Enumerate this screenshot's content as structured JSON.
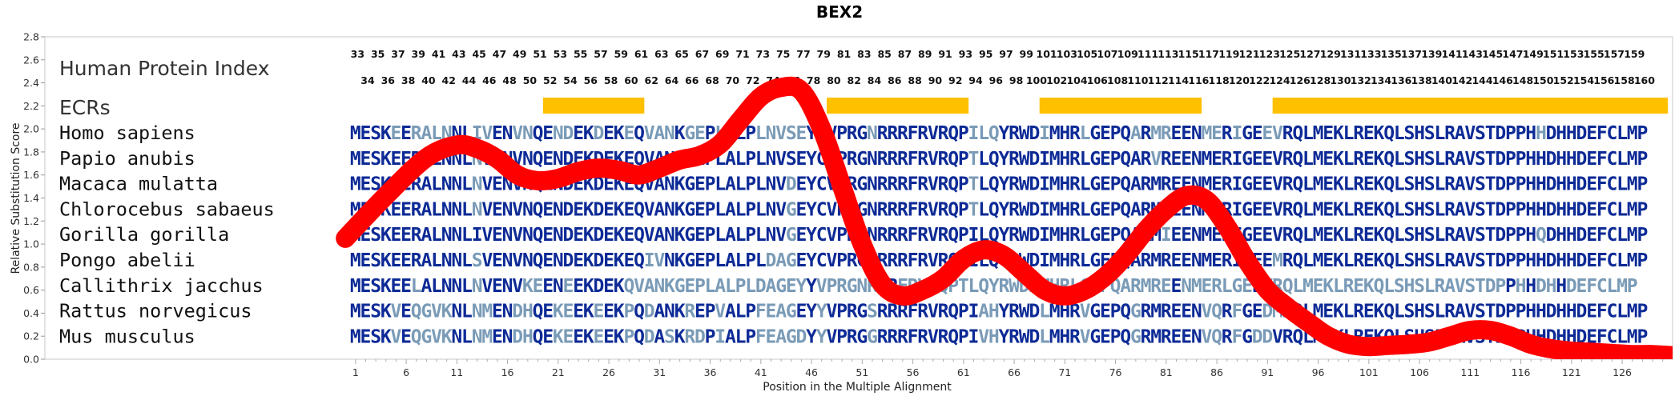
{
  "chart_data": {
    "type": "line",
    "title": "BEX2",
    "xlabel": "Position in the Multiple Alignment",
    "ylabel": "Relative Substitution Score",
    "xlim": [
      1,
      130
    ],
    "ylim": [
      0.0,
      2.8
    ],
    "y_ticks": [
      "0.0",
      "0.2",
      "0.4",
      "0.6",
      "0.8",
      "1.0",
      "1.2",
      "1.4",
      "1.6",
      "1.8",
      "2.0",
      "2.2",
      "2.4",
      "2.6",
      "2.8"
    ],
    "x_ticks": [
      "1",
      "6",
      "11",
      "16",
      "21",
      "26",
      "31",
      "36",
      "41",
      "46",
      "51",
      "56",
      "61",
      "66",
      "71",
      "76",
      "81",
      "86",
      "91",
      "96",
      "101",
      "106",
      "111",
      "116",
      "121",
      "126"
    ],
    "grid": false,
    "series": [
      {
        "color": "#ff0000",
        "x": [
          0,
          4,
          8,
          11,
          13,
          15,
          17,
          19,
          21,
          23,
          25,
          27,
          29,
          31,
          33,
          35,
          37,
          39,
          41,
          43,
          45,
          47,
          49,
          51,
          53,
          55,
          57,
          59,
          61,
          63,
          65,
          67,
          69,
          71,
          73,
          75,
          77,
          79,
          81,
          83,
          85,
          87,
          89,
          91,
          93,
          95,
          97,
          99,
          101,
          103,
          105,
          107,
          109,
          111,
          113,
          115,
          117,
          119,
          121,
          123,
          125,
          127,
          129,
          131
        ],
        "y": [
          1.05,
          1.42,
          1.75,
          1.86,
          1.83,
          1.74,
          1.6,
          1.55,
          1.57,
          1.63,
          1.66,
          1.64,
          1.6,
          1.66,
          1.73,
          1.77,
          1.87,
          2.08,
          2.28,
          2.36,
          2.33,
          2.0,
          1.5,
          1.0,
          0.65,
          0.55,
          0.6,
          0.7,
          0.87,
          0.95,
          0.9,
          0.75,
          0.6,
          0.55,
          0.6,
          0.72,
          0.9,
          1.12,
          1.3,
          1.42,
          1.38,
          1.15,
          0.85,
          0.6,
          0.45,
          0.32,
          0.2,
          0.13,
          0.11,
          0.12,
          0.13,
          0.15,
          0.2,
          0.25,
          0.25,
          0.2,
          0.13,
          0.09,
          0.07,
          0.06,
          0.05,
          0.04,
          0.04,
          0.03
        ]
      }
    ]
  },
  "rows": {
    "index_label": "Human Protein Index",
    "ecr_label": "ECRs"
  },
  "human_index_top": [
    "33",
    "35",
    "37",
    "39",
    "41",
    "43",
    "45",
    "47",
    "49",
    "51",
    "53",
    "55",
    "57",
    "59",
    "61",
    "63",
    "65",
    "67",
    "69",
    "71",
    "73",
    "75",
    "77",
    "79",
    "81",
    "83",
    "85",
    "87",
    "89",
    "91",
    "93",
    "95",
    "97",
    "99",
    "101",
    "103",
    "105",
    "107",
    "109",
    "111",
    "113",
    "115",
    "117",
    "119",
    "121",
    "123",
    "125",
    "127",
    "129",
    "131",
    "133",
    "135",
    "137",
    "139",
    "141",
    "143",
    "145",
    "147",
    "149",
    "151",
    "153",
    "155",
    "157",
    "159"
  ],
  "human_index_bottom": [
    "34",
    "36",
    "38",
    "40",
    "42",
    "44",
    "46",
    "48",
    "50",
    "52",
    "54",
    "56",
    "58",
    "60",
    "62",
    "64",
    "66",
    "68",
    "70",
    "72",
    "74",
    "76",
    "78",
    "80",
    "82",
    "84",
    "86",
    "88",
    "90",
    "92",
    "94",
    "96",
    "98",
    "100",
    "102",
    "104",
    "106",
    "108",
    "110",
    "112",
    "114",
    "116",
    "118",
    "120",
    "122",
    "124",
    "126",
    "128",
    "130",
    "132",
    "134",
    "136",
    "138",
    "140",
    "142",
    "144",
    "146",
    "148",
    "150",
    "152",
    "154",
    "156",
    "158",
    "160"
  ],
  "ecr_blocks": [
    {
      "start": 20,
      "end": 29
    },
    {
      "start": 48,
      "end": 61
    },
    {
      "start": 69,
      "end": 84
    },
    {
      "start": 92,
      "end": 117
    },
    {
      "start": 118,
      "end": 130
    }
  ],
  "colors": {
    "conserved": "#0d2a96",
    "variable": "#7a9bb7",
    "ecr": "#ffc000",
    "curve": "#ff0000"
  },
  "alignment": [
    {
      "species": "Homo sapiens",
      "sequence": "MESKEERALNNLIVENVNQENDEKDEKEQVANKGEPLALPLNVSEYCVPRGNRRRFRVRQPILQYRWDIMHRLGEPQARMREENMERIGEEVRQLMEKLREKQLSHSLRAVSTDPPHHDHHDEFCLMP"
    },
    {
      "species": "Papio anubis",
      "sequence": "MESKEERALNNLNVENVNQENDEKDEKEQVANKGEPLALPLNVSEYCVPRGNRRRFRVRQPTLQYRWDIMHRLGEPQARVREENMERIGEEVRQLMEKLREKQLSHSLRAVSTDPPHHDHHDEFCLMP"
    },
    {
      "species": "Macaca mulatta",
      "sequence": "MESKEERALNNLNVENVNQENDEKDEKEQVANKGEPLALPLNVDEYCVPRGNRRRFRVRQPTLQYRWDIMHRLGEPQARMREENMERIGEEVRQLMEKLREKQLSHSLRAVSTDPPHHDHHDEFCLMP"
    },
    {
      "species": "Chlorocebus sabaeus",
      "sequence": "MESKEERALNNLNVENVNQENDEKDEKEQVANKGEPLALPLNVGEYCVPRGNRRRFRVRQPTLQYRWDIMHRLGEPQARMREENMERIGEEVRQLMEKLREKQLSHSLRAVSTDPPHHDHHDEFCLMP"
    },
    {
      "species": "Gorilla gorilla",
      "sequence": "MESKEERALNNLIVENVNQENDEKDEKEQVANKGEPLALPLNVGEYCVPRGNRRRFRVRQPILQYRWDIMHRLGEPQARMIEENMERIGEEVRQLMEKLREKQLSHSLRAVSTDPPHQDHHDEFCLMP"
    },
    {
      "species": "Pongo abelii",
      "sequence": "MESKEERALNNLSVENVNQENDEKDEKEQIVNKGEPLALPLDAGEYCVPRGNRRRFRVRQPILQYRWDIMHRLGEPQARMREENMERIGEEMRQLMEKLREKQLSHSLRAVSTDPPHHDHHDEFCLMP"
    },
    {
      "species": "Callithrix jacchus",
      "sequence": "MESKEELALNNLNVENVKEENEEKDEKQVANKGEPLALPLDAGEYYVPRGNRRRFRVRQPTLQYRWDMMHRLGEPQARMREENMERLGEEVRQLMEKLREKQLSHSLRAVSTDPPHHDHHDEFCLMP"
    },
    {
      "species": "Rattus norvegicus",
      "sequence": "MESKVEQGVKNLNMENDHQEKEEKEEKPQDANKREPVALPFEAGEYYVPRGSRRRFRVRQPIAHYRWDLMHRVGEPQGRMREENVQRFGEDMRQLMEKLREKQLSHSLRAVSTDPPHHDHHDEFCLMP"
    },
    {
      "species": "Mus musculus",
      "sequence": "MESKVEQGVKNLNMENDHQEKEEKEEKPQDASKRDPIALPFEAGDYYVPRGGRRRFRVRQPIVHYRWDLMHRVGEPQGRMREENVQRFGDDVRQLMEKLREKQLSHSLRAVSTDPPHHDHHDEFCLMP"
    }
  ]
}
